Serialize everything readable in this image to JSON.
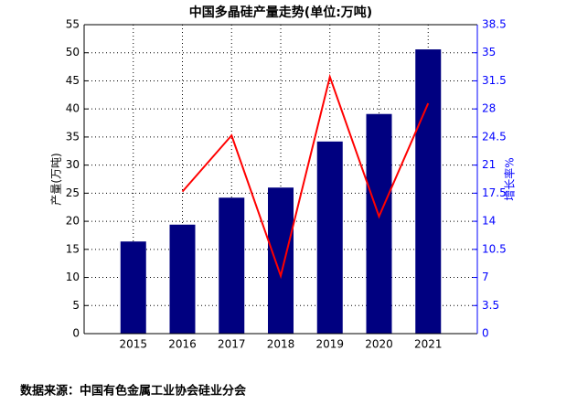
{
  "chart_data": {
    "type": "bar",
    "title": "中国多晶硅产量走势(单位:万吨)",
    "ylabel": "产量(万吨)",
    "y2label": "增长率%",
    "note": "数据来源：中国有色金属工业协会硅业分会",
    "x": [
      2015,
      2016,
      2017,
      2018,
      2019,
      2020,
      2021
    ],
    "xlim": [
      2014,
      2022
    ],
    "xticks": [
      2015,
      2016,
      2017,
      2018,
      2019,
      2020,
      2021
    ],
    "series": [
      {
        "type": "bar",
        "color": "#000080",
        "values": [
          16.4,
          19.4,
          24.2,
          26.0,
          34.2,
          39.1,
          50.6
        ]
      },
      {
        "type": "line",
        "axis": "y2",
        "color": "#ff0000",
        "values": [
          null,
          17.7,
          24.7,
          7.2,
          32.0,
          14.6,
          28.7
        ]
      }
    ],
    "ylim": [
      0,
      55
    ],
    "yticks": [
      0,
      5,
      10,
      15,
      20,
      25,
      30,
      35,
      40,
      45,
      50,
      55
    ],
    "y2lim": [
      0,
      38.5
    ],
    "y2ticks": [
      0,
      3.5,
      7,
      10.5,
      14,
      17.5,
      21,
      24.5,
      28,
      31.5,
      35,
      38.5
    ],
    "y2color": "#0000ff",
    "grid": true
  }
}
